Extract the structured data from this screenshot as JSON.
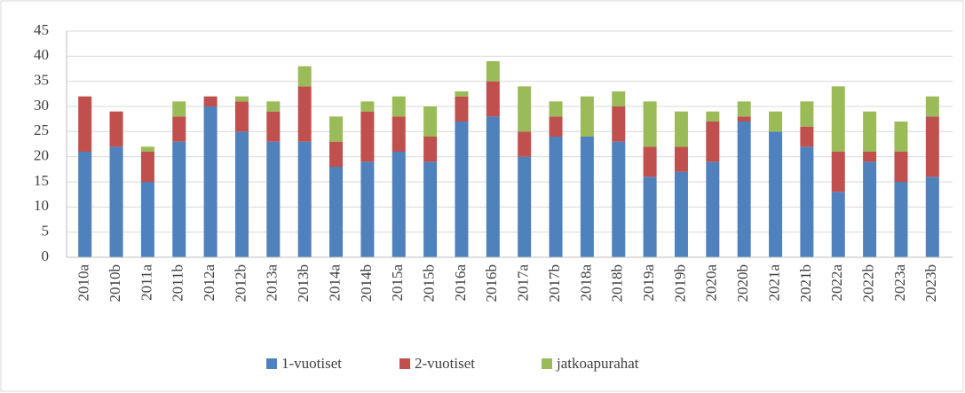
{
  "chart_data": {
    "type": "stacked_bar",
    "categories": [
      "2010a",
      "2010b",
      "2011a",
      "2011b",
      "2012a",
      "2012b",
      "2013a",
      "2013b",
      "2014a",
      "2014b",
      "2015a",
      "2015b",
      "2016a",
      "2016b",
      "2017a",
      "2017b",
      "2018a",
      "2018b",
      "2019a",
      "2019b",
      "2020a",
      "2020b",
      "2021a",
      "2021b",
      "2022a",
      "2022b",
      "2023a",
      "2023b"
    ],
    "series": [
      {
        "name": "1-vuotiset",
        "color": "#4f81bd",
        "values": [
          21,
          22,
          15,
          23,
          30,
          25,
          23,
          23,
          18,
          19,
          21,
          19,
          27,
          28,
          20,
          24,
          24,
          23,
          16,
          17,
          19,
          27,
          25,
          22,
          13,
          19,
          15,
          16
        ]
      },
      {
        "name": "2-vuotiset",
        "color": "#c0504d",
        "values": [
          11,
          7,
          6,
          5,
          2,
          6,
          6,
          11,
          5,
          10,
          7,
          5,
          5,
          7,
          5,
          4,
          0,
          7,
          6,
          5,
          8,
          1,
          0,
          4,
          8,
          2,
          6,
          12
        ]
      },
      {
        "name": "jatkoapurahat",
        "color": "#9bbb59",
        "values": [
          0,
          0,
          1,
          3,
          0,
          1,
          2,
          4,
          5,
          2,
          4,
          6,
          1,
          4,
          9,
          3,
          8,
          3,
          9,
          7,
          2,
          3,
          4,
          5,
          13,
          8,
          6,
          4
        ]
      }
    ],
    "ylim": [
      0,
      45
    ],
    "yticks": [
      0,
      5,
      10,
      15,
      20,
      25,
      30,
      35,
      40,
      45
    ],
    "grid": true,
    "legend": "bottom"
  }
}
